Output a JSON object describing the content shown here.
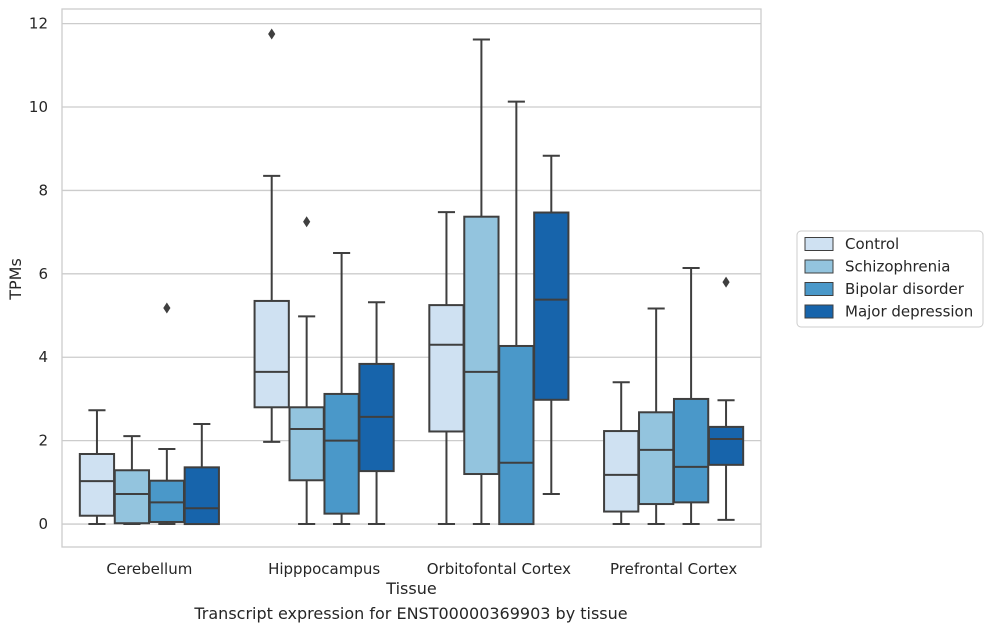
{
  "caption": "Transcript expression for ENST00000369903 by tissue",
  "chart_data": {
    "type": "boxplot",
    "xlabel": "Tissue",
    "ylabel": "TPMs",
    "ylim": [
      -0.55,
      12.35
    ],
    "yticks": [
      0,
      2,
      4,
      6,
      8,
      10,
      12
    ],
    "grid": true,
    "legend_position": "right",
    "categories": [
      "Cerebellum",
      "Hipppocampus",
      "Orbitofontal Cortex",
      "Prefrontal Cortex"
    ],
    "series": [
      {
        "name": "Control",
        "color": "#cfe1f2",
        "boxes": [
          {
            "whislo": 0.0,
            "q1": 0.2,
            "med": 1.03,
            "q3": 1.68,
            "whishi": 2.73,
            "fliers": []
          },
          {
            "whislo": 1.97,
            "q1": 2.8,
            "med": 3.65,
            "q3": 5.35,
            "whishi": 8.35,
            "fliers": [
              11.75
            ]
          },
          {
            "whislo": 0.0,
            "q1": 2.22,
            "med": 4.3,
            "q3": 5.25,
            "whishi": 7.48,
            "fliers": []
          },
          {
            "whislo": 0.0,
            "q1": 0.3,
            "med": 1.18,
            "q3": 2.23,
            "whishi": 3.4,
            "fliers": []
          }
        ]
      },
      {
        "name": "Schizophrenia",
        "color": "#93c4de",
        "boxes": [
          {
            "whislo": 0.0,
            "q1": 0.02,
            "med": 0.72,
            "q3": 1.29,
            "whishi": 2.11,
            "fliers": []
          },
          {
            "whislo": 0.0,
            "q1": 1.05,
            "med": 2.28,
            "q3": 2.8,
            "whishi": 4.98,
            "fliers": [
              7.25
            ]
          },
          {
            "whislo": 0.0,
            "q1": 1.2,
            "med": 3.65,
            "q3": 7.37,
            "whishi": 11.62,
            "fliers": []
          },
          {
            "whislo": 0.0,
            "q1": 0.48,
            "med": 1.78,
            "q3": 2.68,
            "whishi": 5.17,
            "fliers": []
          }
        ]
      },
      {
        "name": "Bipolar disorder",
        "color": "#4a98c9",
        "boxes": [
          {
            "whislo": 0.0,
            "q1": 0.05,
            "med": 0.52,
            "q3": 1.04,
            "whishi": 1.8,
            "fliers": [
              5.18
            ]
          },
          {
            "whislo": 0.0,
            "q1": 0.25,
            "med": 2.0,
            "q3": 3.12,
            "whishi": 6.5,
            "fliers": []
          },
          {
            "whislo": 0.0,
            "q1": 0.0,
            "med": 1.47,
            "q3": 4.27,
            "whishi": 10.13,
            "fliers": []
          },
          {
            "whislo": 0.0,
            "q1": 0.52,
            "med": 1.37,
            "q3": 3.0,
            "whishi": 6.14,
            "fliers": []
          }
        ]
      },
      {
        "name": "Major depression",
        "color": "#1764ab",
        "boxes": [
          {
            "whislo": 0.0,
            "q1": 0.0,
            "med": 0.38,
            "q3": 1.36,
            "whishi": 2.4,
            "fliers": []
          },
          {
            "whislo": 0.0,
            "q1": 1.27,
            "med": 2.57,
            "q3": 3.84,
            "whishi": 5.32,
            "fliers": []
          },
          {
            "whislo": 0.72,
            "q1": 2.98,
            "med": 5.38,
            "q3": 7.47,
            "whishi": 8.83,
            "fliers": []
          },
          {
            "whislo": 0.1,
            "q1": 1.42,
            "med": 2.04,
            "q3": 2.33,
            "whishi": 2.97,
            "fliers": [
              5.8
            ]
          }
        ]
      }
    ]
  }
}
